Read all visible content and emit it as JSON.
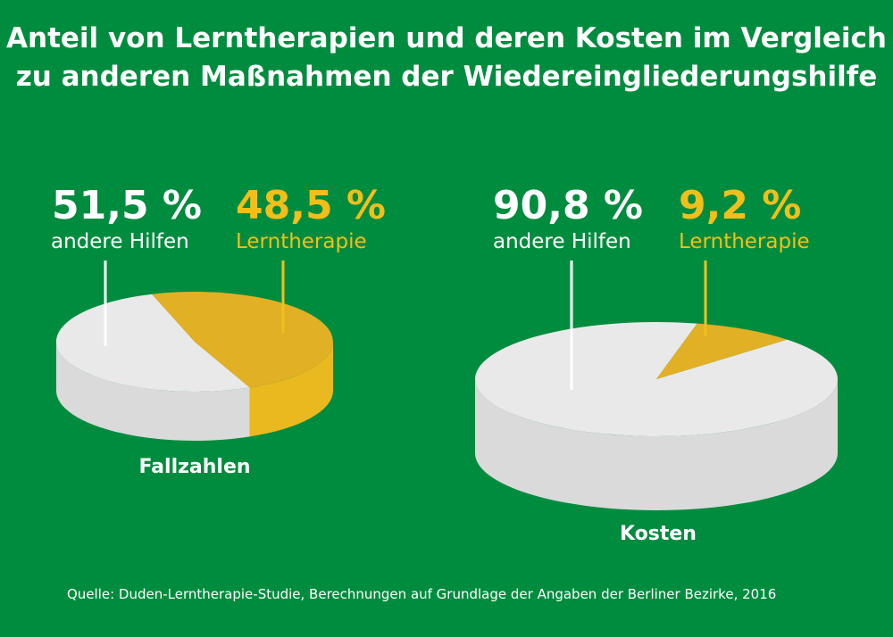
{
  "title": {
    "line1": "Anteil von Lerntherapien und deren Kosten im Vergleich",
    "line2": "zu anderen Maßnahmen der Wiedereingliederungshilfe"
  },
  "colors": {
    "background": "#008c3e",
    "other_top": "#e9e9e9",
    "other_side": "#dadada",
    "therapy_top": "#e2b025",
    "therapy_side": "#e9b91f",
    "white_text": "#ffffff",
    "yellow_text": "#f2bf1a"
  },
  "chart_data": [
    {
      "type": "pie",
      "caption": "Fallzahlen",
      "slices": [
        {
          "label": "andere Hilfen",
          "value": 51.5,
          "value_text": "51,5 %"
        },
        {
          "label": "Lerntherapie",
          "value": 48.5,
          "value_text": "48,5 %"
        }
      ]
    },
    {
      "type": "pie",
      "caption": "Kosten",
      "slices": [
        {
          "label": "andere Hilfen",
          "value": 90.8,
          "value_text": "90,8 %"
        },
        {
          "label": "Lerntherapie",
          "value": 9.2,
          "value_text": "9,2 %"
        }
      ]
    }
  ],
  "source": "Quelle: Duden-Lerntherapie-Studie, Berechnungen auf Grundlage der Angaben der Berliner Bezirke, 2016"
}
